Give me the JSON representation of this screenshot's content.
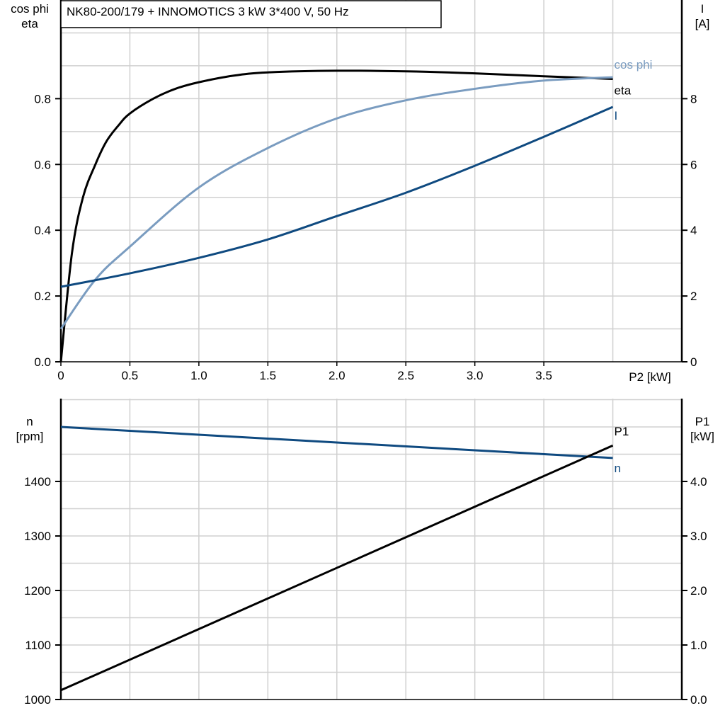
{
  "title": "NK80-200/179 + INNOMOTICS   3 kW   3*400 V, 50 Hz",
  "chart_data": [
    {
      "type": "line",
      "xlabel": "P2 [kW]",
      "xlim": [
        0,
        4.5
      ],
      "xticks": [
        "0",
        "0.5",
        "1.0",
        "1.5",
        "2.0",
        "2.5",
        "3.0",
        "3.5"
      ],
      "xtick_values": [
        0,
        0.5,
        1.0,
        1.5,
        2.0,
        2.5,
        3.0,
        3.5
      ],
      "ylabel_left": [
        "cos phi",
        "eta"
      ],
      "ylim_left": [
        0,
        1.1
      ],
      "yticks_left": [
        "0.0",
        "0.2",
        "0.4",
        "0.6",
        "0.8"
      ],
      "ylabel_right": [
        "I",
        "[A]"
      ],
      "ylim_right": [
        0,
        11
      ],
      "yticks_right": [
        "0",
        "2",
        "4",
        "6",
        "8"
      ],
      "grid": true,
      "series": [
        {
          "name": "eta",
          "axis": "left",
          "color": "#000000",
          "x": [
            0,
            0.08,
            0.16,
            0.25,
            0.33,
            0.42,
            0.5,
            0.67,
            0.83,
            1.0,
            1.25,
            1.5,
            2.0,
            2.5,
            3.0,
            3.5,
            4.0
          ],
          "y": [
            0,
            0.33,
            0.5,
            0.6,
            0.67,
            0.72,
            0.755,
            0.8,
            0.83,
            0.85,
            0.87,
            0.88,
            0.885,
            0.883,
            0.877,
            0.868,
            0.86
          ]
        },
        {
          "name": "cos phi",
          "axis": "left",
          "color": "#7a9cc0",
          "x": [
            0,
            0.25,
            0.5,
            1.0,
            1.5,
            2.0,
            2.5,
            3.0,
            3.5,
            4.0
          ],
          "y": [
            0.1,
            0.25,
            0.35,
            0.53,
            0.65,
            0.74,
            0.795,
            0.83,
            0.855,
            0.865
          ]
        },
        {
          "name": "I",
          "axis": "right",
          "color": "#0f4a80",
          "x": [
            0,
            0.5,
            1.0,
            1.5,
            2.0,
            2.5,
            3.0,
            3.5,
            4.0
          ],
          "y": [
            2.28,
            2.69,
            3.16,
            3.72,
            4.43,
            5.14,
            5.96,
            6.84,
            7.75
          ]
        }
      ]
    },
    {
      "type": "line",
      "xlim": [
        0,
        4.5
      ],
      "ylabel_left": [
        "n",
        "[rpm]"
      ],
      "ylim_left": [
        1000,
        1552
      ],
      "yticks_left": [
        "1000",
        "1100",
        "1200",
        "1300",
        "1400"
      ],
      "ylabel_right": [
        "P1",
        "[kW]"
      ],
      "ylim_right": [
        0,
        5.52
      ],
      "yticks_right": [
        "0.0",
        "1.0",
        "2.0",
        "3.0",
        "4.0"
      ],
      "grid": true,
      "series": [
        {
          "name": "n",
          "axis": "left",
          "color": "#0f4a80",
          "x": [
            0,
            4.0
          ],
          "y": [
            1500,
            1443
          ]
        },
        {
          "name": "P1",
          "axis": "right",
          "color": "#000000",
          "x": [
            0,
            4.0
          ],
          "y": [
            0.17,
            4.66
          ]
        }
      ]
    }
  ]
}
